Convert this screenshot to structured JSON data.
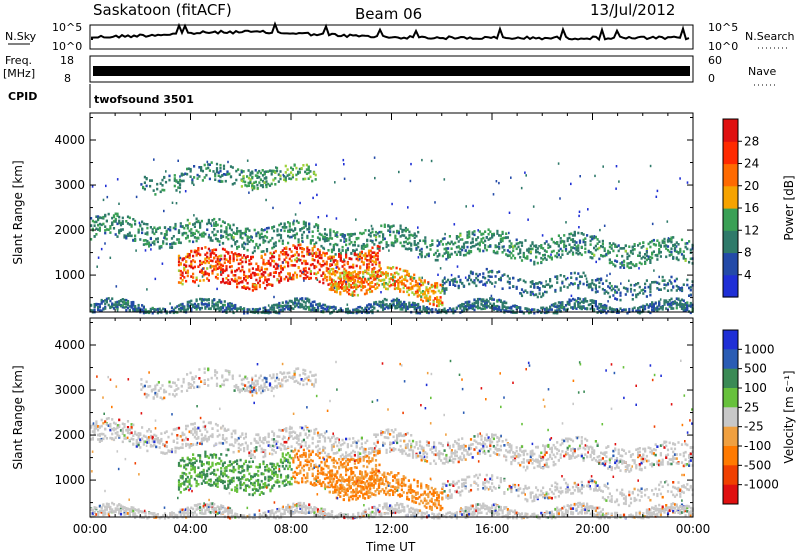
{
  "header": {
    "station": "Saskatoon (fitACF)",
    "beam": "Beam 06",
    "date": "13/Jul/2012"
  },
  "strips": {
    "nsky_label": "N.Sky",
    "nsky_ticks": [
      "10^5",
      "10^0"
    ],
    "nsearch_label": "N.Search",
    "nsearch_ticks": [
      "10^5",
      "10^0"
    ],
    "freq_label": "Freq.",
    "freq_unit": "[MHz]",
    "freq_ticks": [
      "18",
      "8"
    ],
    "nave_label": "Nave",
    "nave_ticks": [
      "60",
      "0"
    ],
    "cpid_label": "CPID",
    "cpid_value": "twofsound 3501"
  },
  "colors": {
    "power_scale": [
      "#1f2fd6",
      "#234aa8",
      "#2f7a6a",
      "#3aa055",
      "#9fd13a",
      "#f6a300",
      "#ff6a00",
      "#ff2a00",
      "#e01010"
    ],
    "velocity_scale": [
      "#1f2fd6",
      "#2a5cb4",
      "#3a8a55",
      "#67c13c",
      "#c8c8c8",
      "#f0a040",
      "#ff7a00",
      "#f04000",
      "#e01010"
    ]
  },
  "chart_data": [
    {
      "type": "heatmap",
      "name": "Power",
      "xlabel": "Time UT",
      "ylabel": "Slant Range [km]",
      "x_ticks": [
        "00:00",
        "04:00",
        "08:00",
        "12:00",
        "16:00",
        "20:00",
        "00:00"
      ],
      "y_ticks": [
        1000,
        2000,
        3000,
        4000
      ],
      "ylim": [
        180,
        4600
      ],
      "colorbar_label": "Power [dB]",
      "colorbar_ticks": [
        4,
        8,
        12,
        16,
        20,
        24,
        28
      ],
      "clim": [
        0,
        30
      ]
    },
    {
      "type": "heatmap",
      "name": "Velocity",
      "xlabel": "Time UT",
      "ylabel": "Slant Range [km]",
      "x_ticks": [
        "00:00",
        "04:00",
        "08:00",
        "12:00",
        "16:00",
        "20:00",
        "00:00"
      ],
      "y_ticks": [
        1000,
        2000,
        3000,
        4000
      ],
      "ylim": [
        180,
        4600
      ],
      "colorbar_label": "Velocity [m s⁻¹]",
      "colorbar_ticks": [
        1000,
        500,
        100,
        25,
        -25,
        -100,
        -500,
        -1000
      ]
    }
  ]
}
